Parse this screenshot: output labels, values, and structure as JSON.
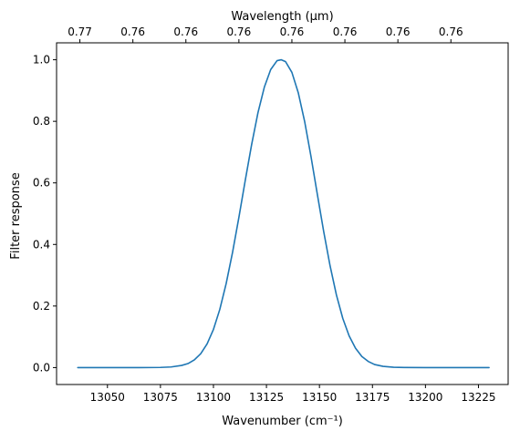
{
  "chart_data": {
    "type": "line",
    "title": "",
    "xlabel": "Wavenumber (cm⁻¹)",
    "ylabel": "Filter response",
    "secondary_xlabel": "Wavelength (μm)",
    "xlim": [
      13026,
      13239
    ],
    "ylim": [
      -0.055,
      1.055
    ],
    "x_ticks": [
      13050,
      13075,
      13100,
      13125,
      13150,
      13175,
      13200,
      13225
    ],
    "x_tick_labels": [
      "13050",
      "13075",
      "13100",
      "13125",
      "13150",
      "13175",
      "13200",
      "13225"
    ],
    "y_ticks": [
      0.0,
      0.2,
      0.4,
      0.6,
      0.8,
      1.0
    ],
    "y_tick_labels": [
      "0.0",
      "0.2",
      "0.4",
      "0.6",
      "0.8",
      "1.0"
    ],
    "secondary_x_ticks": [
      13037,
      13062,
      13087,
      13112,
      13137,
      13162,
      13187,
      13212
    ],
    "secondary_x_tick_labels": [
      "0.77",
      "0.76",
      "0.76",
      "0.76",
      "0.76",
      "0.76",
      "0.76",
      "0.76"
    ],
    "grid": false,
    "series": [
      {
        "color": "#1f77b4",
        "x": [
          13036,
          13045,
          13055,
          13065,
          13075,
          13080,
          13085,
          13088,
          13091,
          13094,
          13097,
          13100,
          13103,
          13106,
          13109,
          13112,
          13115,
          13118,
          13121,
          13124,
          13127,
          13130,
          13132,
          13134,
          13137,
          13140,
          13143,
          13146,
          13149,
          13152,
          13155,
          13158,
          13161,
          13164,
          13167,
          13170,
          13173,
          13176,
          13180,
          13185,
          13190,
          13200,
          13210,
          13220,
          13230
        ],
        "y": [
          0.0,
          0.0,
          0.0,
          0.0,
          0.0005,
          0.002,
          0.007,
          0.013,
          0.025,
          0.045,
          0.077,
          0.124,
          0.189,
          0.273,
          0.374,
          0.488,
          0.608,
          0.724,
          0.828,
          0.911,
          0.968,
          0.997,
          1.0,
          0.994,
          0.959,
          0.893,
          0.8,
          0.686,
          0.563,
          0.442,
          0.331,
          0.236,
          0.16,
          0.103,
          0.063,
          0.036,
          0.02,
          0.01,
          0.004,
          0.001,
          0.0003,
          0.0,
          0.0,
          0.0,
          0.0
        ]
      }
    ]
  }
}
